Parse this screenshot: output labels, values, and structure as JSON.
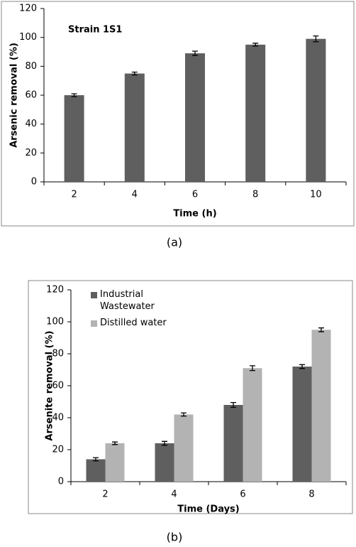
{
  "chart_data": [
    {
      "type": "bar",
      "annotation": "Strain 1S1",
      "ylabel": "Arsenic removal (%)",
      "xlabel": "Time (h)",
      "caption": "(a)",
      "categories": [
        "2",
        "4",
        "6",
        "8",
        "10"
      ],
      "series": [
        {
          "color": "#5f5f5f",
          "values": [
            60,
            75,
            89,
            95,
            99
          ],
          "errors": [
            1,
            1,
            1.5,
            1,
            2
          ]
        }
      ],
      "ylim": [
        0,
        120
      ],
      "yticks": [
        0,
        20,
        40,
        60,
        80,
        100,
        120
      ],
      "grid": false
    },
    {
      "type": "bar",
      "ylabel": "Arsenite removal (%)",
      "xlabel": "Time (Days)",
      "caption": "(b)",
      "categories": [
        "2",
        "4",
        "6",
        "8"
      ],
      "series": [
        {
          "name": "Industrial Wastewater",
          "color": "#5f5f5f",
          "values": [
            14,
            24,
            48,
            72
          ],
          "errors": [
            1,
            1.2,
            1.5,
            1.2
          ]
        },
        {
          "name": "Distilled water",
          "color": "#b3b3b3",
          "values": [
            24,
            42,
            71,
            95
          ],
          "errors": [
            0.8,
            1,
            1.5,
            1.2
          ]
        }
      ],
      "ylim": [
        0,
        120
      ],
      "yticks": [
        0,
        20,
        40,
        60,
        80,
        100,
        120
      ],
      "grid": false,
      "legend": "top-left"
    }
  ]
}
